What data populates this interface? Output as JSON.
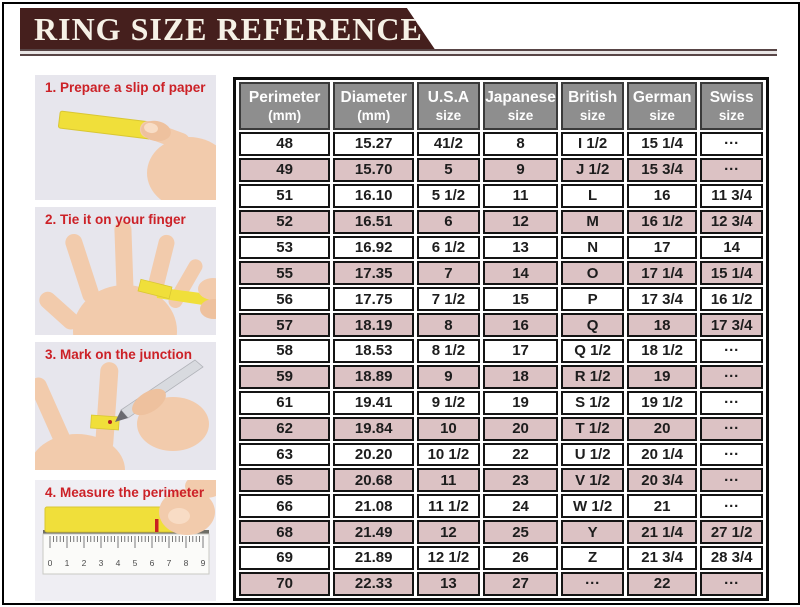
{
  "header": {
    "title": "RING SIZE REFERENCE"
  },
  "steps": [
    {
      "label": "1. Prepare a slip of paper"
    },
    {
      "label": "2. Tie it on your finger"
    },
    {
      "label": "3. Mark on the junction"
    },
    {
      "label": "4. Measure the perimeter"
    }
  ],
  "ruler": {
    "numbers": [
      "0",
      "1",
      "2",
      "3",
      "4",
      "5",
      "6",
      "7",
      "8",
      "9"
    ]
  },
  "colors": {
    "banner": "#451f1d",
    "banner_text": "#f6f1e6",
    "table_header_bg": "#8e8e8e",
    "row_pink": "#dcc2c4",
    "row_white": "#ffffff",
    "step_caption_red": "#cc2127",
    "paper_strip_yellow": "#f0df3a",
    "skin": "#f2cbac"
  },
  "chart_data": {
    "type": "table",
    "title": "RING SIZE REFERENCE",
    "columns": [
      {
        "line1": "Perimeter",
        "line2": "(mm)"
      },
      {
        "line1": "Diameter",
        "line2": "(mm)"
      },
      {
        "line1": "U.S.A",
        "line2": "size"
      },
      {
        "line1": "Japanese",
        "line2": "size"
      },
      {
        "line1": "British",
        "line2": "size"
      },
      {
        "line1": "German",
        "line2": "size"
      },
      {
        "line1": "Swiss",
        "line2": "size"
      }
    ],
    "rows": [
      [
        "48",
        "15.27",
        "41/2",
        "8",
        "I 1/2",
        "15 1/4",
        "···"
      ],
      [
        "49",
        "15.70",
        "5",
        "9",
        "J 1/2",
        "15 3/4",
        "···"
      ],
      [
        "51",
        "16.10",
        "5 1/2",
        "11",
        "L",
        "16",
        "11 3/4"
      ],
      [
        "52",
        "16.51",
        "6",
        "12",
        "M",
        "16 1/2",
        "12 3/4"
      ],
      [
        "53",
        "16.92",
        "6 1/2",
        "13",
        "N",
        "17",
        "14"
      ],
      [
        "55",
        "17.35",
        "7",
        "14",
        "O",
        "17 1/4",
        "15 1/4"
      ],
      [
        "56",
        "17.75",
        "7 1/2",
        "15",
        "P",
        "17 3/4",
        "16 1/2"
      ],
      [
        "57",
        "18.19",
        "8",
        "16",
        "Q",
        "18",
        "17 3/4"
      ],
      [
        "58",
        "18.53",
        "8 1/2",
        "17",
        "Q 1/2",
        "18 1/2",
        "···"
      ],
      [
        "59",
        "18.89",
        "9",
        "18",
        "R 1/2",
        "19",
        "···"
      ],
      [
        "61",
        "19.41",
        "9 1/2",
        "19",
        "S 1/2",
        "19 1/2",
        "···"
      ],
      [
        "62",
        "19.84",
        "10",
        "20",
        "T 1/2",
        "20",
        "···"
      ],
      [
        "63",
        "20.20",
        "10 1/2",
        "22",
        "U 1/2",
        "20 1/4",
        "···"
      ],
      [
        "65",
        "20.68",
        "11",
        "23",
        "V 1/2",
        "20 3/4",
        "···"
      ],
      [
        "66",
        "21.08",
        "11 1/2",
        "24",
        "W 1/2",
        "21",
        "···"
      ],
      [
        "68",
        "21.49",
        "12",
        "25",
        "Y",
        "21 1/4",
        "27 1/2"
      ],
      [
        "69",
        "21.89",
        "12 1/2",
        "26",
        "Z",
        "21 3/4",
        "28 3/4"
      ],
      [
        "70",
        "22.33",
        "13",
        "27",
        "···",
        "22",
        "···"
      ]
    ]
  }
}
